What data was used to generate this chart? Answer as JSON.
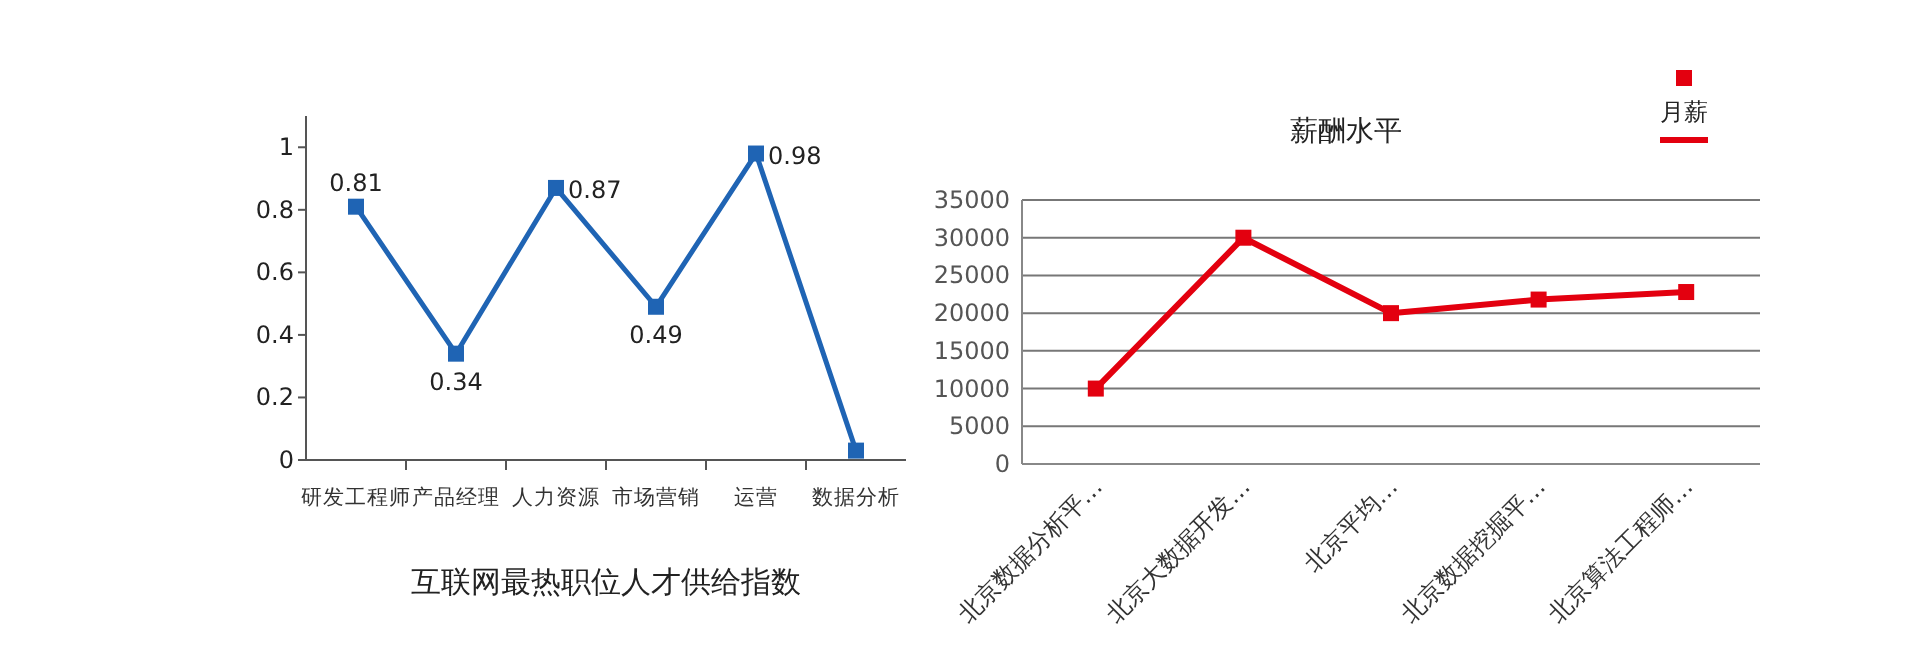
{
  "chart_data": [
    {
      "type": "line",
      "title": "互联网最热职位人才供给指数",
      "categories": [
        "研发工程师",
        "产品经理",
        "人力资源",
        "市场营销",
        "运营",
        "数据分析"
      ],
      "series": [
        {
          "color": "#1f64b4",
          "values": [
            0.81,
            0.34,
            0.87,
            0.49,
            0.98,
            0.03
          ],
          "value_labels": [
            "0.81",
            "0.34",
            "0.87",
            "0.49",
            "0.98",
            null
          ]
        }
      ],
      "ylim": [
        0,
        1.1
      ],
      "yticks": [
        0,
        0.2,
        0.4,
        0.6,
        0.8,
        1
      ],
      "grid": false,
      "legend": false,
      "marker": "square",
      "line_style": "solid"
    },
    {
      "type": "line",
      "title": "薪酬水平",
      "categories": [
        "北京数据分析平…",
        "北京大数据开发…",
        "北京平均…",
        "北京数据挖掘平…",
        "北京算法工程师…"
      ],
      "series": [
        {
          "name": "月薪",
          "color": "#e3000f",
          "values": [
            10000,
            30000,
            20000,
            21800,
            22800
          ]
        }
      ],
      "ylim": [
        0,
        35000
      ],
      "yticks": [
        0,
        5000,
        10000,
        15000,
        20000,
        25000,
        30000,
        35000
      ],
      "grid": "y",
      "legend": "top right",
      "marker": "square",
      "line_style": "solid"
    }
  ]
}
